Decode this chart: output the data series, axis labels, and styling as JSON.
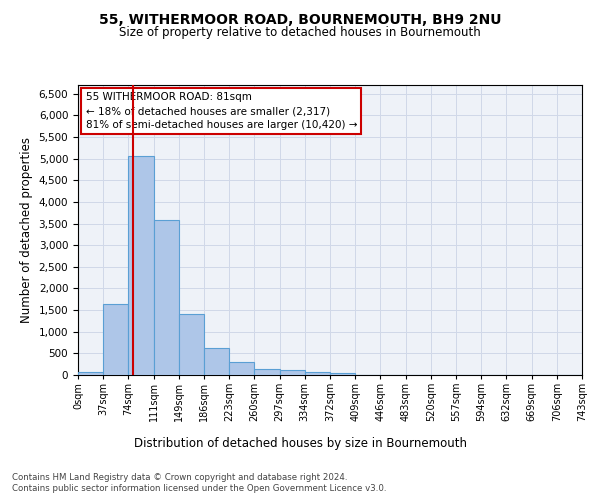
{
  "title_line1": "55, WITHERMOOR ROAD, BOURNEMOUTH, BH9 2NU",
  "title_line2": "Size of property relative to detached houses in Bournemouth",
  "xlabel": "Distribution of detached houses by size in Bournemouth",
  "ylabel": "Number of detached properties",
  "bar_color": "#aec6e8",
  "bar_edge_color": "#5a9fd4",
  "grid_color": "#d0d8e8",
  "background_color": "#eef2f8",
  "vline_color": "#cc0000",
  "vline_x": 81,
  "bin_width": 37,
  "num_bins": 20,
  "bar_heights": [
    70,
    1630,
    5070,
    3580,
    1400,
    620,
    300,
    150,
    110,
    75,
    40,
    0,
    0,
    0,
    0,
    0,
    0,
    0,
    0,
    0
  ],
  "ylim": [
    0,
    6700
  ],
  "yticks": [
    0,
    500,
    1000,
    1500,
    2000,
    2500,
    3000,
    3500,
    4000,
    4500,
    5000,
    5500,
    6000,
    6500
  ],
  "annotation_title": "55 WITHERMOOR ROAD: 81sqm",
  "annotation_line1": "← 18% of detached houses are smaller (2,317)",
  "annotation_line2": "81% of semi-detached houses are larger (10,420) →",
  "annotation_box_color": "#ffffff",
  "annotation_border_color": "#cc0000",
  "footer_line1": "Contains HM Land Registry data © Crown copyright and database right 2024.",
  "footer_line2": "Contains public sector information licensed under the Open Government Licence v3.0.",
  "tick_labels": [
    "0sqm",
    "37sqm",
    "74sqm",
    "111sqm",
    "149sqm",
    "186sqm",
    "223sqm",
    "260sqm",
    "297sqm",
    "334sqm",
    "372sqm",
    "409sqm",
    "446sqm",
    "483sqm",
    "520sqm",
    "557sqm",
    "594sqm",
    "632sqm",
    "669sqm",
    "706sqm",
    "743sqm"
  ]
}
